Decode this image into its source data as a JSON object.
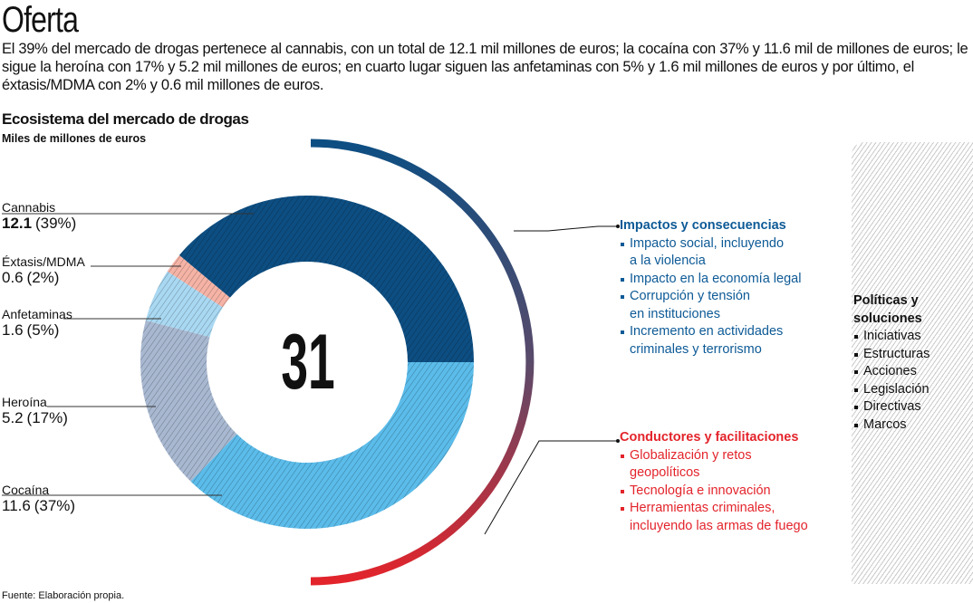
{
  "title": "Oferta",
  "intro": "El 39% del mercado de drogas pertenece al cannabis, con un total de 12.1 mil millones de euros; la cocaína con 37% y 11.6 mil de millones de euros; le sigue la heroína con 17% y 5.2 mil millones de euros; en cuarto lugar siguen las anfetaminas con 5% y 1.6 mil millones de euros y por último, el éxtasis/MDMA con 2% y 0.6 mil millones de euros.",
  "source": "Fuente: Elaboración propia.",
  "chart_data": {
    "type": "pie",
    "title": "Ecosistema del mercado de drogas",
    "subtitle": "Miles de millones de euros",
    "total": "31",
    "slices": [
      {
        "name": "Cannabis",
        "value": 12.1,
        "pct": "(39%)",
        "value_label": "12.1",
        "color": "#0d4e82"
      },
      {
        "name": "Éxtasis/MDMA",
        "value": 0.6,
        "pct": "(2%)",
        "value_label": "0.6",
        "color": "#f5b3a6"
      },
      {
        "name": "Anfetaminas",
        "value": 1.6,
        "pct": "(5%)",
        "value_label": "1.6",
        "color": "#a9d8f2"
      },
      {
        "name": "Heroína",
        "value": 5.2,
        "pct": "(17%)",
        "value_label": "5.2",
        "color": "#a8b8d0"
      },
      {
        "name": "Cocaína",
        "value": 11.6,
        "pct": "(37%)",
        "value_label": "11.6",
        "color": "#5bbcea"
      }
    ]
  },
  "impacts": {
    "heading": "Impactos y consecuencias",
    "color": "#0d5a96",
    "items": [
      "Impacto social, incluyendo",
      "a la violencia",
      "Impacto en la economía legal",
      "Corrupción y tensión",
      "en instituciones",
      "Incremento en actividades",
      "criminales y terrorismo"
    ]
  },
  "drivers": {
    "heading": "Conductores y facilitaciones",
    "color": "#e3242b",
    "items": [
      "Globalización y retos",
      "geopolíticos",
      "Tecnología e innovación",
      "Herramientas criminales,",
      "incluyendo las armas de fuego"
    ]
  },
  "policies": {
    "heading1": "Políticas y",
    "heading2": "soluciones",
    "items": [
      "Iniciativas",
      "Estructuras",
      "Acciones",
      "Legislación",
      "Directivas",
      "Marcos"
    ]
  }
}
